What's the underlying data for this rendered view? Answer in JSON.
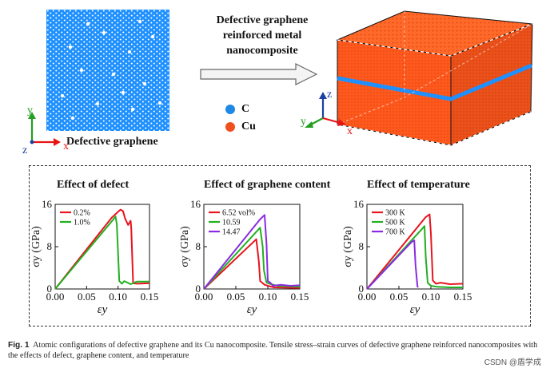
{
  "figure": {
    "top_label": "Defective graphene reinforced metal nanocomposite",
    "defective_label": "Defective graphene",
    "axes2d": {
      "y": "y",
      "z": "z",
      "x": "x"
    },
    "axes3d": {
      "z": "z",
      "y": "y",
      "x": "x"
    },
    "atom_legend": [
      {
        "label": "C",
        "color": "#1e88e5"
      },
      {
        "label": "Cu",
        "color": "#f0501e"
      }
    ],
    "colors": {
      "graphene": "#1e90ff",
      "copper": "#ff5a1e",
      "red": "#e8141e",
      "green": "#22b022",
      "purple": "#8a2be2"
    }
  },
  "chart_data": [
    {
      "type": "line",
      "title": "Effect of defect",
      "xlabel": "εy",
      "ylabel": "σy (GPa)",
      "xlim": [
        0,
        0.15
      ],
      "ylim": [
        0,
        16
      ],
      "xticks": [
        "0.00",
        "0.05",
        "0.10",
        "0.15"
      ],
      "yticks": [
        "0",
        "8",
        "16"
      ],
      "series": [
        {
          "name": "0.2%",
          "color": "#e8141e",
          "x": [
            0,
            0.09,
            0.1,
            0.104,
            0.108,
            0.111,
            0.114,
            0.116,
            0.12,
            0.121,
            0.124,
            0.13,
            0.15
          ],
          "y": [
            0,
            13.5,
            14.6,
            15.0,
            14.7,
            13.4,
            12.6,
            12.1,
            12.9,
            11.5,
            1.1,
            1.0,
            1.1
          ]
        },
        {
          "name": "1.0%",
          "color": "#22b022",
          "x": [
            0,
            0.09,
            0.096,
            0.098,
            0.102,
            0.106,
            0.11,
            0.12,
            0.13,
            0.15
          ],
          "y": [
            0,
            12.8,
            13.7,
            12.3,
            1.5,
            1.0,
            1.5,
            0.9,
            1.4,
            1.4
          ]
        }
      ]
    },
    {
      "type": "line",
      "title": "Effect of graphene content",
      "xlabel": "εy",
      "ylabel": "σy (GPa)",
      "xlim": [
        0,
        0.15
      ],
      "ylim": [
        0,
        16
      ],
      "xticks": [
        "0.00",
        "0.05",
        "0.10",
        "0.15"
      ],
      "yticks": [
        "0",
        "8",
        "16"
      ],
      "series": [
        {
          "name": "6.52 vol%",
          "color": "#e8141e",
          "x": [
            0,
            0.082,
            0.086,
            0.088,
            0.09,
            0.095,
            0.1,
            0.11,
            0.15
          ],
          "y": [
            0,
            9.4,
            5.2,
            1.5,
            1.3,
            0.8,
            0.6,
            0.3,
            0.2
          ]
        },
        {
          "name": "10.59",
          "color": "#22b022",
          "x": [
            0,
            0.088,
            0.092,
            0.094,
            0.098,
            0.105,
            0.115,
            0.15
          ],
          "y": [
            0,
            11.6,
            8.0,
            3.5,
            1.2,
            0.9,
            0.6,
            0.4
          ]
        },
        {
          "name": "14.47",
          "color": "#8a2be2",
          "x": [
            0,
            0.088,
            0.095,
            0.098,
            0.1,
            0.104,
            0.108,
            0.12,
            0.135,
            0.15
          ],
          "y": [
            0,
            13.2,
            14.0,
            8.5,
            1.5,
            1.2,
            0.6,
            0.8,
            0.6,
            0.7
          ]
        }
      ]
    },
    {
      "type": "line",
      "title": "Effect of temperature",
      "xlabel": "εy",
      "ylabel": "σy (GPa)",
      "xlim": [
        0,
        0.15
      ],
      "ylim": [
        0,
        16
      ],
      "xticks": [
        "0.00",
        "0.05",
        "0.10",
        "0.15"
      ],
      "yticks": [
        "0",
        "8",
        "16"
      ],
      "series": [
        {
          "name": "300 K",
          "color": "#e8141e",
          "x": [
            0,
            0.092,
            0.098,
            0.1,
            0.103,
            0.108,
            0.115,
            0.13,
            0.15
          ],
          "y": [
            0,
            13.6,
            14.1,
            10.5,
            1.6,
            1.0,
            1.2,
            0.9,
            1.0
          ]
        },
        {
          "name": "500 K",
          "color": "#22b022",
          "x": [
            0,
            0.085,
            0.09,
            0.092,
            0.095,
            0.1,
            0.11,
            0.13,
            0.15
          ],
          "y": [
            0,
            11.2,
            11.9,
            6.0,
            1.2,
            0.6,
            0.4,
            0.3,
            0.3
          ]
        },
        {
          "name": "700 K",
          "color": "#8a2be2",
          "x": [
            0,
            0.07,
            0.074,
            0.076,
            0.079,
            0.08
          ],
          "y": [
            0,
            8.9,
            9.2,
            4.5,
            0.5,
            0.3
          ]
        }
      ]
    }
  ],
  "caption": {
    "label": "Fig. 1",
    "text": "Atomic configurations of defective graphene and its Cu nanocomposite. Tensile stress–strain curves of defective graphene reinforced nanocomposites with the effects of defect, graphene content, and temperature"
  },
  "watermark": "CSDN @盾学成"
}
